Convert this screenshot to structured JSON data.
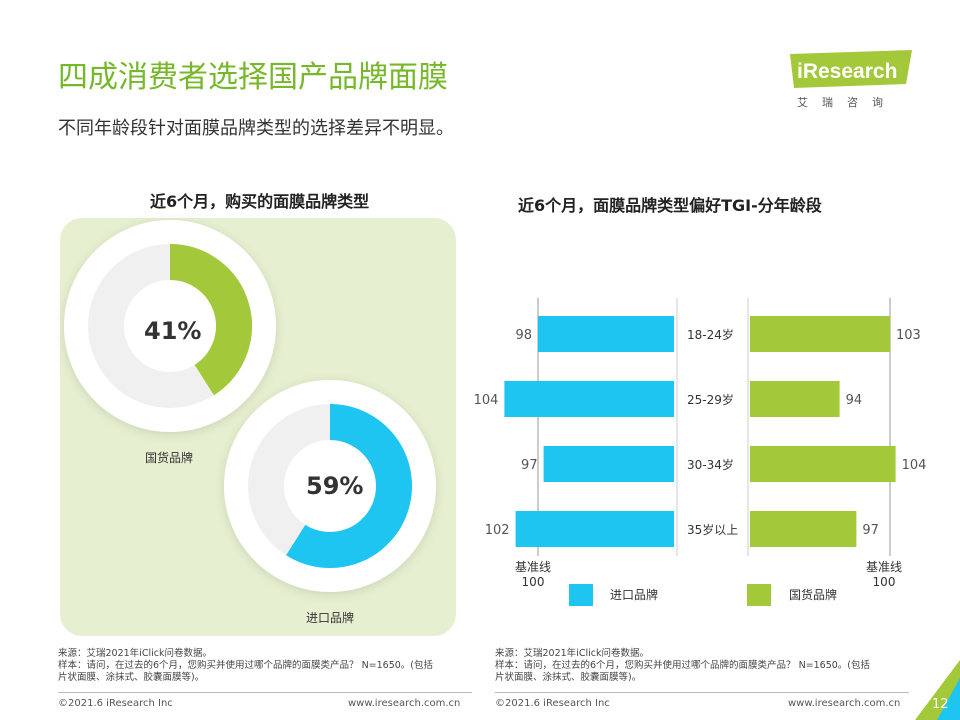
{
  "header": {
    "title": "四成消费者选择国产品牌面膜",
    "subtitle": "不同年龄段针对面膜品牌类型的选择差异不明显。",
    "logo_text": "iResearch",
    "logo_sub": "艾瑞咨询"
  },
  "colors": {
    "green": "#a3c93a",
    "blue": "#1ec5f0",
    "title_green": "#77b82a",
    "panel": "#e6f0d0"
  },
  "chart_data": [
    {
      "type": "pie",
      "title": "近6个月，购买的面膜品牌类型",
      "slices": [
        {
          "label": "国货品牌",
          "value": 41,
          "display": "41%",
          "color": "#a3c93a"
        },
        {
          "label": "进口品牌",
          "value": 59,
          "display": "59%",
          "color": "#1ec5f0"
        }
      ]
    },
    {
      "type": "bar",
      "title": "近6个月，面膜品牌类型偏好TGI-分年龄段",
      "categories": [
        "18-24岁",
        "25-29岁",
        "30-34岁",
        "35岁以上"
      ],
      "baseline": 100,
      "baseline_label": "基准线",
      "baseline_value": "100",
      "series": [
        {
          "name": "进口品牌",
          "values": [
            98,
            104,
            97,
            102
          ],
          "color": "#1ec5f0"
        },
        {
          "name": "国货品牌",
          "values": [
            103,
            94,
            104,
            97
          ],
          "color": "#a3c93a"
        }
      ]
    }
  ],
  "sources": {
    "left": [
      "来源：艾瑞2021年iClick问卷数据。",
      "样本：请问，在过去的6个月，您购买并使用过哪个品牌的面膜类产品？ N=1650。(包括",
      "片状面膜、涂抹式、胶囊面膜等)。"
    ],
    "right": [
      "来源：艾瑞2021年iClick问卷数据。",
      "样本：请问，在过去的6个月，您购买并使用过哪个品牌的面膜类产品？ N=1650。(包括",
      "片状面膜、涂抹式、胶囊面膜等)。"
    ]
  },
  "footer": {
    "copyright": "©2021.6 iResearch Inc",
    "url": "www.iresearch.com.cn",
    "page": "12"
  }
}
